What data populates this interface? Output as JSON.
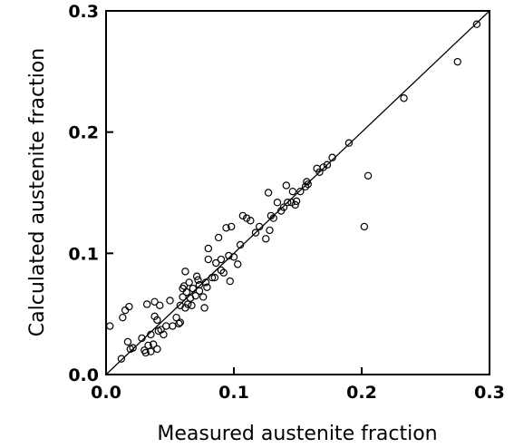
{
  "chart_data": {
    "type": "scatter",
    "xlabel": "Measured austenite fraction",
    "ylabel": "Calculated austenite fraction",
    "xlim": [
      0,
      0.3
    ],
    "ylim": [
      0,
      0.3
    ],
    "xticks": [
      0,
      0.1,
      0.2,
      0.3
    ],
    "yticks": [
      0,
      0.1,
      0.2,
      0.3
    ],
    "xtick_labels": [
      "0.0",
      "0.1",
      "0.2",
      "0.3"
    ],
    "ytick_labels": [
      "0.0",
      "0.1",
      "0.2",
      "0.3"
    ],
    "grid": false,
    "reference_line": {
      "type": "y=x",
      "from": [
        0,
        0
      ],
      "to": [
        0.3,
        0.3
      ]
    },
    "marker": "open-circle",
    "series": [
      {
        "points": [
          [
            0.003,
            0.04
          ],
          [
            0.012,
            0.013
          ],
          [
            0.013,
            0.047
          ],
          [
            0.015,
            0.053
          ],
          [
            0.018,
            0.056
          ],
          [
            0.017,
            0.027
          ],
          [
            0.019,
            0.021
          ],
          [
            0.021,
            0.022
          ],
          [
            0.028,
            0.03
          ],
          [
            0.03,
            0.02
          ],
          [
            0.031,
            0.018
          ],
          [
            0.032,
            0.058
          ],
          [
            0.033,
            0.024
          ],
          [
            0.035,
            0.019
          ],
          [
            0.035,
            0.033
          ],
          [
            0.037,
            0.025
          ],
          [
            0.038,
            0.06
          ],
          [
            0.038,
            0.048
          ],
          [
            0.04,
            0.021
          ],
          [
            0.04,
            0.045
          ],
          [
            0.041,
            0.036
          ],
          [
            0.042,
            0.057
          ],
          [
            0.043,
            0.037
          ],
          [
            0.045,
            0.033
          ],
          [
            0.047,
            0.04
          ],
          [
            0.05,
            0.061
          ],
          [
            0.052,
            0.04
          ],
          [
            0.055,
            0.047
          ],
          [
            0.057,
            0.042
          ],
          [
            0.058,
            0.043
          ],
          [
            0.058,
            0.057
          ],
          [
            0.06,
            0.064
          ],
          [
            0.06,
            0.071
          ],
          [
            0.061,
            0.073
          ],
          [
            0.062,
            0.055
          ],
          [
            0.062,
            0.085
          ],
          [
            0.063,
            0.068
          ],
          [
            0.064,
            0.058
          ],
          [
            0.065,
            0.076
          ],
          [
            0.066,
            0.063
          ],
          [
            0.067,
            0.057
          ],
          [
            0.068,
            0.071
          ],
          [
            0.07,
            0.065
          ],
          [
            0.071,
            0.081
          ],
          [
            0.072,
            0.078
          ],
          [
            0.073,
            0.069
          ],
          [
            0.073,
            0.074
          ],
          [
            0.076,
            0.064
          ],
          [
            0.077,
            0.055
          ],
          [
            0.078,
            0.076
          ],
          [
            0.079,
            0.072
          ],
          [
            0.08,
            0.095
          ],
          [
            0.08,
            0.104
          ],
          [
            0.083,
            0.08
          ],
          [
            0.085,
            0.08
          ],
          [
            0.086,
            0.092
          ],
          [
            0.088,
            0.113
          ],
          [
            0.09,
            0.086
          ],
          [
            0.09,
            0.095
          ],
          [
            0.092,
            0.084
          ],
          [
            0.094,
            0.121
          ],
          [
            0.096,
            0.098
          ],
          [
            0.097,
            0.077
          ],
          [
            0.098,
            0.122
          ],
          [
            0.1,
            0.097
          ],
          [
            0.103,
            0.091
          ],
          [
            0.105,
            0.107
          ],
          [
            0.107,
            0.131
          ],
          [
            0.11,
            0.129
          ],
          [
            0.113,
            0.127
          ],
          [
            0.117,
            0.117
          ],
          [
            0.12,
            0.122
          ],
          [
            0.125,
            0.112
          ],
          [
            0.127,
            0.15
          ],
          [
            0.128,
            0.119
          ],
          [
            0.129,
            0.131
          ],
          [
            0.131,
            0.129
          ],
          [
            0.134,
            0.142
          ],
          [
            0.137,
            0.135
          ],
          [
            0.139,
            0.138
          ],
          [
            0.141,
            0.156
          ],
          [
            0.142,
            0.142
          ],
          [
            0.145,
            0.142
          ],
          [
            0.146,
            0.151
          ],
          [
            0.148,
            0.14
          ],
          [
            0.149,
            0.143
          ],
          [
            0.152,
            0.151
          ],
          [
            0.156,
            0.155
          ],
          [
            0.157,
            0.159
          ],
          [
            0.158,
            0.157
          ],
          [
            0.165,
            0.17
          ],
          [
            0.167,
            0.167
          ],
          [
            0.17,
            0.171
          ],
          [
            0.173,
            0.173
          ],
          [
            0.177,
            0.179
          ],
          [
            0.19,
            0.191
          ],
          [
            0.202,
            0.122
          ],
          [
            0.205,
            0.164
          ],
          [
            0.233,
            0.228
          ],
          [
            0.275,
            0.258
          ],
          [
            0.29,
            0.289
          ]
        ]
      }
    ]
  }
}
